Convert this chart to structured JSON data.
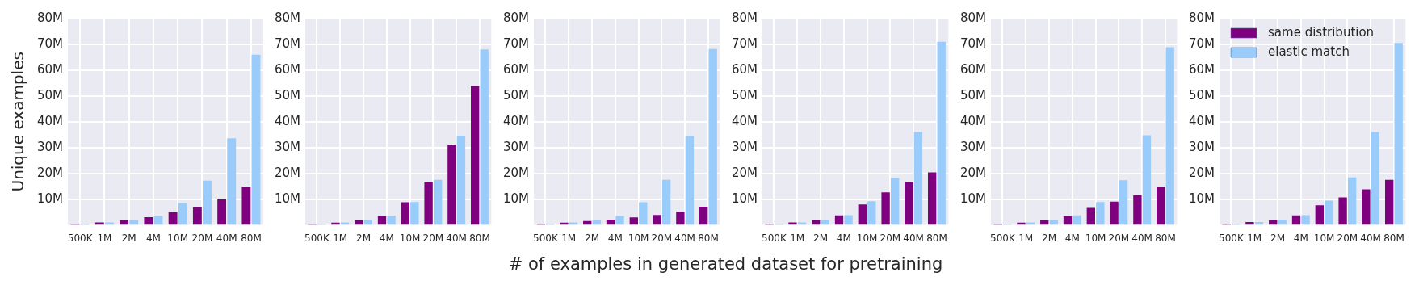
{
  "chart_data": [
    {
      "type": "bar",
      "ylabel": "Unique examples",
      "categories": [
        "500K",
        "1M",
        "2M",
        "4M",
        "10M",
        "20M",
        "40M",
        "80M"
      ],
      "ylim": [
        0,
        80000000
      ],
      "yticks": [
        {
          "value": 10000000,
          "label": "10M"
        },
        {
          "value": 20000000,
          "label": "20M"
        },
        {
          "value": 30000000,
          "label": "30M"
        },
        {
          "value": 40000000,
          "label": "40M"
        },
        {
          "value": 50000000,
          "label": "50M"
        },
        {
          "value": 60000000,
          "label": "60M"
        },
        {
          "value": 70000000,
          "label": "70M"
        },
        {
          "value": 80000000,
          "label": "80M"
        }
      ],
      "grid": true,
      "series": [
        {
          "color": "#7f007f",
          "values": [
            400000,
            1000000,
            1800000,
            3000000,
            5000000,
            6900000,
            9900000,
            14900000
          ]
        },
        {
          "color": "#99ccfa",
          "values": [
            500000,
            1000000,
            1800000,
            3400000,
            8500000,
            17200000,
            33600000,
            66000000
          ]
        }
      ]
    },
    {
      "type": "bar",
      "categories": [
        "500K",
        "1M",
        "2M",
        "4M",
        "10M",
        "20M",
        "40M",
        "80M"
      ],
      "ylim": [
        0,
        80000000
      ],
      "yticks": [
        {
          "value": 10000000,
          "label": "10M"
        },
        {
          "value": 20000000,
          "label": "20M"
        },
        {
          "value": 30000000,
          "label": "30M"
        },
        {
          "value": 40000000,
          "label": "40M"
        },
        {
          "value": 50000000,
          "label": "50M"
        },
        {
          "value": 60000000,
          "label": "60M"
        },
        {
          "value": 70000000,
          "label": "70M"
        },
        {
          "value": 80000000,
          "label": "80M"
        }
      ],
      "grid": true,
      "series": [
        {
          "color": "#7f007f",
          "values": [
            400000,
            900000,
            1800000,
            3500000,
            8800000,
            16800000,
            31200000,
            53900000
          ]
        },
        {
          "color": "#99ccfa",
          "values": [
            500000,
            1000000,
            1900000,
            3600000,
            8900000,
            17500000,
            34600000,
            68000000
          ]
        }
      ]
    },
    {
      "type": "bar",
      "xlabel": "# of examples in generated dataset for pretraining",
      "categories": [
        "500K",
        "1M",
        "2M",
        "4M",
        "10M",
        "20M",
        "40M",
        "80M"
      ],
      "ylim": [
        0,
        80000000
      ],
      "yticks": [
        {
          "value": 10000000,
          "label": "10M"
        },
        {
          "value": 20000000,
          "label": "20M"
        },
        {
          "value": 30000000,
          "label": "30M"
        },
        {
          "value": 40000000,
          "label": "40M"
        },
        {
          "value": 50000000,
          "label": "50M"
        },
        {
          "value": 60000000,
          "label": "60M"
        },
        {
          "value": 70000000,
          "label": "70M"
        },
        {
          "value": 80000000,
          "label": "80M"
        }
      ],
      "grid": true,
      "series": [
        {
          "color": "#7f007f",
          "values": [
            400000,
            900000,
            1500000,
            2100000,
            2900000,
            3900000,
            5100000,
            7100000
          ]
        },
        {
          "color": "#99ccfa",
          "values": [
            500000,
            1000000,
            1900000,
            3500000,
            8800000,
            17500000,
            34500000,
            68200000
          ]
        }
      ]
    },
    {
      "type": "bar",
      "categories": [
        "500K",
        "1M",
        "2M",
        "4M",
        "10M",
        "20M",
        "40M",
        "80M"
      ],
      "ylim": [
        0,
        80000000
      ],
      "yticks": [
        {
          "value": 10000000,
          "label": "10M"
        },
        {
          "value": 20000000,
          "label": "20M"
        },
        {
          "value": 30000000,
          "label": "30M"
        },
        {
          "value": 40000000,
          "label": "40M"
        },
        {
          "value": 50000000,
          "label": "50M"
        },
        {
          "value": 60000000,
          "label": "60M"
        },
        {
          "value": 70000000,
          "label": "70M"
        },
        {
          "value": 80000000,
          "label": "80M"
        }
      ],
      "grid": true,
      "series": [
        {
          "color": "#7f007f",
          "values": [
            400000,
            1000000,
            1900000,
            3700000,
            7900000,
            12600000,
            16800000,
            20400000
          ]
        },
        {
          "color": "#99ccfa",
          "values": [
            500000,
            1000000,
            1900000,
            3800000,
            9200000,
            18200000,
            36000000,
            71000000
          ]
        }
      ]
    },
    {
      "type": "bar",
      "categories": [
        "500K",
        "1M",
        "2M",
        "4M",
        "10M",
        "20M",
        "40M",
        "80M"
      ],
      "ylim": [
        0,
        80000000
      ],
      "yticks": [
        {
          "value": 10000000,
          "label": "10M"
        },
        {
          "value": 20000000,
          "label": "20M"
        },
        {
          "value": 30000000,
          "label": "30M"
        },
        {
          "value": 40000000,
          "label": "40M"
        },
        {
          "value": 50000000,
          "label": "50M"
        },
        {
          "value": 60000000,
          "label": "60M"
        },
        {
          "value": 70000000,
          "label": "70M"
        },
        {
          "value": 80000000,
          "label": "80M"
        }
      ],
      "grid": true,
      "series": [
        {
          "color": "#7f007f",
          "values": [
            400000,
            900000,
            1800000,
            3400000,
            6600000,
            9000000,
            11500000,
            14900000
          ]
        },
        {
          "color": "#99ccfa",
          "values": [
            500000,
            1000000,
            1900000,
            3700000,
            8900000,
            17300000,
            34800000,
            68900000
          ]
        }
      ]
    },
    {
      "type": "bar",
      "categories": [
        "500K",
        "1M",
        "2M",
        "4M",
        "10M",
        "20M",
        "40M",
        "80M"
      ],
      "ylim": [
        0,
        80000000
      ],
      "yticks": [
        {
          "value": 10000000,
          "label": "10M"
        },
        {
          "value": 20000000,
          "label": "20M"
        },
        {
          "value": 30000000,
          "label": "30M"
        },
        {
          "value": 40000000,
          "label": "40M"
        },
        {
          "value": 50000000,
          "label": "50M"
        },
        {
          "value": 60000000,
          "label": "60M"
        },
        {
          "value": 70000000,
          "label": "70M"
        },
        {
          "value": 80000000,
          "label": "80M"
        }
      ],
      "grid": true,
      "legend": "top left",
      "series": [
        {
          "name": "same distribution",
          "color": "#7f007f",
          "values": [
            500000,
            1100000,
            1900000,
            3700000,
            7600000,
            10700000,
            13800000,
            17500000
          ]
        },
        {
          "name": "elastic match",
          "color": "#99ccfa",
          "values": [
            500000,
            1100000,
            2000000,
            3800000,
            9400000,
            18400000,
            36000000,
            70500000
          ]
        }
      ]
    }
  ]
}
